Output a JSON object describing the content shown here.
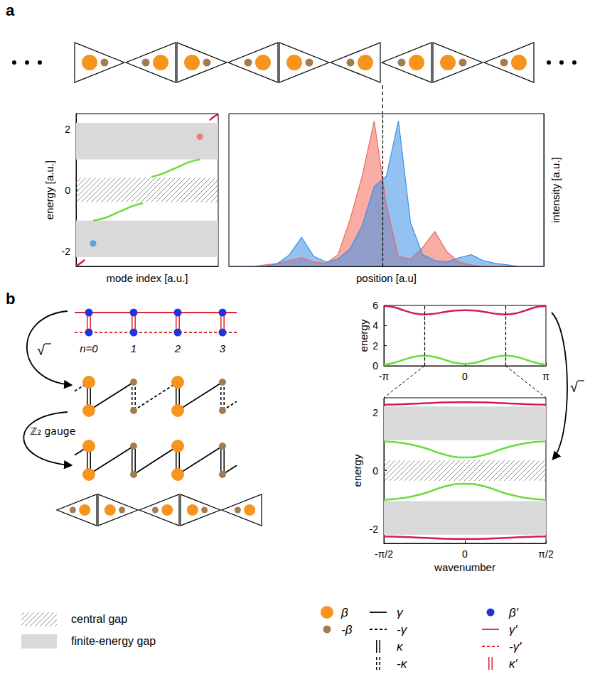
{
  "panel_labels": [
    "a",
    "b"
  ],
  "chart_data": [
    {
      "type": "line",
      "xlabel": "mode index [a.u.]",
      "ylabel": "energy [a.u.]",
      "xlim": [
        0,
        100
      ],
      "ylim": [
        -2.5,
        2.5
      ],
      "yticks": [
        -2,
        0,
        2
      ],
      "tick_labels": "y",
      "gaps": {
        "central": [
          -0.4,
          0.4
        ],
        "finite_energy": [
          [
            1.0,
            2.2
          ],
          [
            -2.2,
            -1.0
          ]
        ]
      },
      "series": [
        {
          "color": "#d41c4f",
          "x": [
            0,
            3,
            6
          ],
          "values": [
            -2.48,
            -2.4,
            -2.28
          ]
        },
        {
          "color": "#66dd3a",
          "x": [
            12,
            20,
            30,
            40,
            47
          ],
          "values": [
            -1.0,
            -0.92,
            -0.72,
            -0.52,
            -0.43
          ]
        },
        {
          "color": "#66dd3a",
          "x": [
            53,
            60,
            70,
            80,
            87
          ],
          "values": [
            0.43,
            0.52,
            0.72,
            0.92,
            1.0
          ]
        },
        {
          "color": "#d41c4f",
          "x": [
            94,
            97,
            100
          ],
          "values": [
            2.28,
            2.4,
            2.48
          ]
        },
        {
          "type": "scatter",
          "color": "#3b8fe8",
          "x": [
            12
          ],
          "values": [
            -1.75
          ]
        },
        {
          "type": "scatter",
          "color": "#f2675a",
          "x": [
            87
          ],
          "values": [
            1.75
          ]
        }
      ]
    },
    {
      "type": "area",
      "xlabel": "position [a.u]",
      "ylabel": "intensity [a.u.]",
      "xlim": [
        0,
        26
      ],
      "ylim": [
        0,
        1.05
      ],
      "tick_labels": false,
      "domain_wall": 12.7,
      "x": [
        0,
        1,
        2,
        3,
        4,
        5,
        6,
        7,
        8,
        9,
        10,
        11,
        12,
        13,
        14,
        15,
        16,
        17,
        18,
        19,
        20,
        21,
        22,
        23,
        24,
        25,
        26
      ],
      "series": [
        {
          "color": "#f2675a",
          "values": [
            0,
            0,
            0,
            0.01,
            0.02,
            0.04,
            0.06,
            0.03,
            0.02,
            0.08,
            0.32,
            0.62,
            1.0,
            0.42,
            0.07,
            0.05,
            0.13,
            0.24,
            0.1,
            0.03,
            0.01,
            0,
            0,
            0,
            0,
            0,
            0
          ]
        },
        {
          "color": "#3b8fe8",
          "values": [
            0,
            0,
            0,
            0,
            0.02,
            0.08,
            0.2,
            0.07,
            0.03,
            0.05,
            0.12,
            0.28,
            0.55,
            0.62,
            1.0,
            0.3,
            0.08,
            0.04,
            0.03,
            0.06,
            0.08,
            0.04,
            0.02,
            0.01,
            0,
            0,
            0
          ]
        }
      ]
    },
    {
      "type": "line",
      "ylabel": "energy",
      "xlim": [
        -3.1416,
        3.1416
      ],
      "xticks": [
        {
          "value": -3.1416,
          "label": "-π"
        },
        0,
        {
          "value": 3.1416,
          "label": "π"
        }
      ],
      "ylim": [
        0,
        6
      ],
      "yticks": [
        0,
        2,
        4,
        6
      ],
      "fold_lines": [
        -1.5708,
        1.5708
      ],
      "x": [
        -3.1416,
        -2.7489,
        -2.3562,
        -1.9635,
        -1.5708,
        -1.1781,
        -0.7854,
        -0.3927,
        0,
        0.3927,
        0.7854,
        1.1781,
        1.5708,
        1.9635,
        2.3562,
        2.7489,
        3.1416
      ],
      "series": [
        {
          "color": "#d41c4f",
          "values": [
            5.95,
            5.82,
            5.5,
            5.2,
            5.1,
            5.18,
            5.35,
            5.48,
            5.52,
            5.48,
            5.35,
            5.18,
            5.1,
            5.2,
            5.5,
            5.82,
            5.95
          ]
        },
        {
          "color": "#66dd3a",
          "values": [
            0.1,
            0.3,
            0.62,
            0.9,
            1.0,
            0.88,
            0.6,
            0.3,
            0.2,
            0.3,
            0.6,
            0.88,
            1.0,
            0.9,
            0.62,
            0.3,
            0.1
          ]
        }
      ]
    },
    {
      "type": "line",
      "xlabel": "wavenumber",
      "ylabel": "energy",
      "xlim": [
        -1.5708,
        1.5708
      ],
      "xticks": [
        {
          "value": -1.5708,
          "label": "-π/2"
        },
        0,
        {
          "value": 1.5708,
          "label": "π/2"
        }
      ],
      "ylim": [
        -2.5,
        2.5
      ],
      "yticks": [
        -2,
        0,
        2
      ],
      "gaps": {
        "central": [
          -0.35,
          0.35
        ],
        "finite_energy": [
          [
            1.05,
            2.2
          ],
          [
            -2.2,
            -1.05
          ]
        ]
      },
      "x": [
        -1.5708,
        -1.1781,
        -0.7854,
        -0.3927,
        0,
        0.3927,
        0.7854,
        1.1781,
        1.5708
      ],
      "series": [
        {
          "color": "#d41c4f",
          "values": [
            2.26,
            2.28,
            2.31,
            2.34,
            2.35,
            2.34,
            2.31,
            2.28,
            2.26
          ]
        },
        {
          "color": "#66dd3a",
          "values": [
            1.0,
            0.94,
            0.78,
            0.55,
            0.45,
            0.55,
            0.78,
            0.94,
            1.0
          ]
        },
        {
          "color": "#66dd3a",
          "values": [
            -1.0,
            -0.94,
            -0.78,
            -0.55,
            -0.45,
            -0.55,
            -0.78,
            -0.94,
            -1.0
          ]
        },
        {
          "color": "#d41c4f",
          "values": [
            -2.26,
            -2.28,
            -2.31,
            -2.34,
            -2.35,
            -2.34,
            -2.31,
            -2.28,
            -2.26
          ]
        }
      ]
    }
  ],
  "diagrams": {
    "sites": [
      "n=0",
      "1",
      "2",
      "3"
    ],
    "arrows": [
      {
        "label": "√"
      },
      {
        "label": "ℤ₂ gauge"
      },
      {
        "label": "√"
      }
    ]
  },
  "key": {
    "gaps": [
      {
        "label": "central gap",
        "marker": "hatched",
        "color": "#8c8c8c"
      },
      {
        "label": "finite-energy gap",
        "marker": "solid",
        "color": "#d9d9d9"
      }
    ],
    "columns": [
      [
        {
          "label": "β",
          "marker": "circle",
          "color": "#f7941d"
        },
        {
          "label": "-β",
          "marker": "dot",
          "color": "#a57c4f"
        }
      ],
      [
        {
          "label": "γ",
          "line_style": "solid",
          "color": "#000000"
        },
        {
          "label": "-γ",
          "line_style": "dashed",
          "color": "#000000"
        },
        {
          "label": "κ",
          "line_style": "double",
          "color": "#000000"
        },
        {
          "label": "-κ",
          "line_style": "double-dashed",
          "color": "#000000"
        }
      ],
      [
        {
          "label": "β′",
          "marker": "dot",
          "color": "#2035d8"
        },
        {
          "label": "γ′",
          "line_style": "solid",
          "color": "#e3242b"
        },
        {
          "label": "-γ′",
          "line_style": "dashed",
          "color": "#e3242b"
        },
        {
          "label": "κ′",
          "line_style": "double",
          "color": "#e3242b"
        }
      ]
    ]
  }
}
